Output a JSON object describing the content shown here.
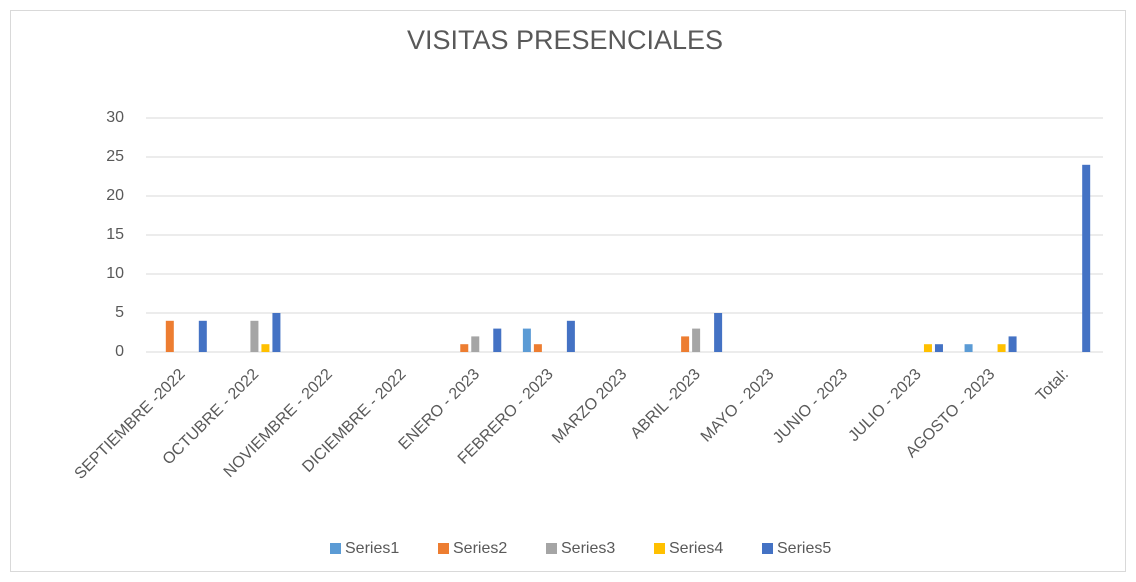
{
  "chart_data": {
    "type": "bar",
    "title": "VISITAS PRESENCIALES",
    "categories": [
      "SEPTIEMBRE -2022",
      "OCTUBRE - 2022",
      "NOVIEMBRE - 2022",
      "DICIEMBRE - 2022",
      "ENERO - 2023",
      "FEBRERO - 2023",
      "MARZO 2023",
      "ABRIL -2023",
      "MAYO - 2023",
      "JUNIO - 2023",
      "JULIO - 2023",
      "AGOSTO - 2023",
      "Total:"
    ],
    "series": [
      {
        "name": "Series1",
        "color": "#5b9bd5",
        "values": [
          null,
          null,
          null,
          null,
          null,
          3,
          null,
          null,
          null,
          null,
          null,
          1,
          null
        ]
      },
      {
        "name": "Series2",
        "color": "#ed7d31",
        "values": [
          4,
          null,
          null,
          null,
          1,
          1,
          null,
          2,
          null,
          null,
          null,
          null,
          null
        ]
      },
      {
        "name": "Series3",
        "color": "#a5a5a5",
        "values": [
          null,
          4,
          null,
          null,
          2,
          null,
          null,
          3,
          null,
          null,
          null,
          null,
          null
        ]
      },
      {
        "name": "Series4",
        "color": "#ffc000",
        "values": [
          null,
          1,
          null,
          null,
          null,
          null,
          null,
          null,
          null,
          null,
          1,
          1,
          null
        ]
      },
      {
        "name": "Series5",
        "color": "#4472c4",
        "values": [
          4,
          5,
          null,
          null,
          3,
          4,
          null,
          5,
          null,
          null,
          1,
          2,
          24
        ]
      }
    ],
    "ylim": [
      0,
      30
    ],
    "yticks": [
      0,
      5,
      10,
      15,
      20,
      25,
      30
    ],
    "grid": true,
    "legend": "bottom"
  }
}
